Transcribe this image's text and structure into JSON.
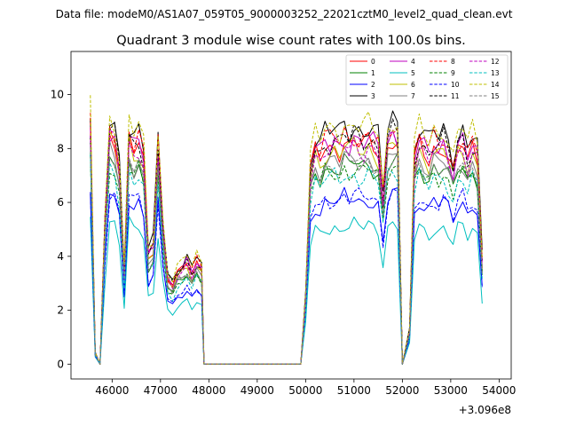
{
  "header": {
    "data_file": "Data file: modeM0/AS1A07_059T05_9000003252_22021cztM0_level2_quad_clean.evt",
    "title": "Quadrant 3 module wise count rates with 100.0s bins."
  },
  "chart_data": {
    "type": "line",
    "x_offset_label": "+3.096e8",
    "xlim": [
      45150,
      54250
    ],
    "ylim": [
      -0.55,
      11.6
    ],
    "xticks": [
      "46000",
      "47000",
      "48000",
      "49000",
      "50000",
      "51000",
      "52000",
      "53000",
      "54000"
    ],
    "yticks": [
      "0",
      "2",
      "4",
      "6",
      "8",
      "10"
    ],
    "grid": false,
    "legend": {
      "position": "top-right",
      "columns": 4
    },
    "series": [
      {
        "name": "0",
        "color": "#ff0000",
        "dash": "solid",
        "level": 8.3,
        "shift": 0
      },
      {
        "name": "1",
        "color": "#008000",
        "dash": "solid",
        "level": 7.5,
        "shift": 1
      },
      {
        "name": "2",
        "color": "#0000ff",
        "dash": "solid",
        "level": 6.2,
        "shift": 2
      },
      {
        "name": "3",
        "color": "#000000",
        "dash": "solid",
        "level": 8.9,
        "shift": 3
      },
      {
        "name": "4",
        "color": "#bf00bf",
        "dash": "solid",
        "level": 8.4,
        "shift": 4
      },
      {
        "name": "5",
        "color": "#00bfbf",
        "dash": "solid",
        "level": 5.2,
        "shift": 5
      },
      {
        "name": "6",
        "color": "#bfbf00",
        "dash": "solid",
        "level": 8.1,
        "shift": 6
      },
      {
        "name": "7",
        "color": "#808080",
        "dash": "solid",
        "level": 7.7,
        "shift": 7
      },
      {
        "name": "8",
        "color": "#ff0000",
        "dash": "dashed",
        "level": 8.6,
        "shift": 8
      },
      {
        "name": "9",
        "color": "#008000",
        "dash": "dashed",
        "level": 7.3,
        "shift": 9
      },
      {
        "name": "10",
        "color": "#0000ff",
        "dash": "dashed",
        "level": 6.3,
        "shift": 10
      },
      {
        "name": "11",
        "color": "#000000",
        "dash": "dashed",
        "level": 8.5,
        "shift": 11
      },
      {
        "name": "12",
        "color": "#bf00bf",
        "dash": "dashed",
        "level": 8.2,
        "shift": 12
      },
      {
        "name": "13",
        "color": "#00bfbf",
        "dash": "dashed",
        "level": 7.1,
        "shift": 13
      },
      {
        "name": "14",
        "color": "#bfbf00",
        "dash": "dashed",
        "level": 9.0,
        "shift": 14
      },
      {
        "name": "15",
        "color": "#808080",
        "dash": "dashed",
        "level": 7.6,
        "shift": 15
      }
    ],
    "time_profile": {
      "x": [
        45550,
        45650,
        45750,
        45850,
        45950,
        46050,
        46150,
        46250,
        46350,
        46450,
        46550,
        46650,
        46750,
        46850,
        46950,
        47050,
        47150,
        47250,
        47350,
        47450,
        47550,
        47650,
        47750,
        47850,
        47900,
        48000,
        49000,
        49900,
        50000,
        50100,
        50200,
        50300,
        50400,
        50500,
        50600,
        50700,
        50800,
        50900,
        51000,
        51100,
        51200,
        51300,
        51400,
        51500,
        51600,
        51700,
        51800,
        51900,
        52000,
        52050,
        52150,
        52250,
        52350,
        52450,
        52550,
        52650,
        52750,
        52850,
        52950,
        53050,
        53150,
        53250,
        53350,
        53450,
        53550,
        53650
      ],
      "relative_rate": [
        1.05,
        0.05,
        0.0,
        0.6,
        1.02,
        1.0,
        0.86,
        0.4,
        1.0,
        0.95,
        0.98,
        0.9,
        0.48,
        0.52,
        0.95,
        0.6,
        0.38,
        0.35,
        0.4,
        0.42,
        0.45,
        0.4,
        0.45,
        0.42,
        0.0,
        0.0,
        0.0,
        0.0,
        0.3,
        0.85,
        0.95,
        0.92,
        0.97,
        0.96,
        0.98,
        0.96,
        1.0,
        0.97,
        1.0,
        0.98,
        0.97,
        0.99,
        0.97,
        0.95,
        0.72,
        0.98,
        1.02,
        1.0,
        0.0,
        0.05,
        0.15,
        0.9,
        0.98,
        0.95,
        0.92,
        0.97,
        0.95,
        0.98,
        0.93,
        0.85,
        0.96,
        0.98,
        0.9,
        0.96,
        0.92,
        0.45
      ]
    }
  }
}
